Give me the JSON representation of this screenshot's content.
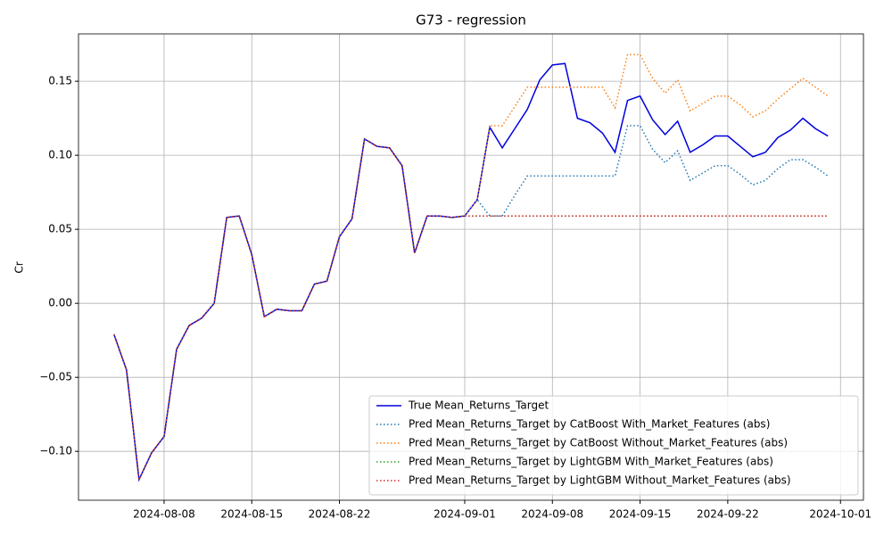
{
  "chart_data": {
    "type": "line",
    "title": "G73 - regression",
    "ylabel": "Cr",
    "x": [
      "2024-08-04",
      "2024-08-05",
      "2024-08-06",
      "2024-08-07",
      "2024-08-08",
      "2024-08-09",
      "2024-08-10",
      "2024-08-11",
      "2024-08-12",
      "2024-08-13",
      "2024-08-14",
      "2024-08-15",
      "2024-08-16",
      "2024-08-17",
      "2024-08-18",
      "2024-08-19",
      "2024-08-20",
      "2024-08-21",
      "2024-08-22",
      "2024-08-23",
      "2024-08-24",
      "2024-08-25",
      "2024-08-26",
      "2024-08-27",
      "2024-08-28",
      "2024-08-29",
      "2024-08-30",
      "2024-08-31",
      "2024-09-01",
      "2024-09-02",
      "2024-09-03",
      "2024-09-04",
      "2024-09-05",
      "2024-09-06",
      "2024-09-07",
      "2024-09-08",
      "2024-09-09",
      "2024-09-10",
      "2024-09-11",
      "2024-09-12",
      "2024-09-13",
      "2024-09-14",
      "2024-09-15",
      "2024-09-16",
      "2024-09-17",
      "2024-09-18",
      "2024-09-19",
      "2024-09-20",
      "2024-09-21",
      "2024-09-22",
      "2024-09-23",
      "2024-09-24",
      "2024-09-25",
      "2024-09-26",
      "2024-09-27",
      "2024-09-28",
      "2024-09-29",
      "2024-09-30"
    ],
    "series": [
      {
        "name": "True Mean_Returns_Target",
        "color": "#0000dd",
        "style": "solid",
        "values": [
          -0.021,
          -0.045,
          -0.119,
          -0.101,
          -0.09,
          -0.031,
          -0.015,
          -0.01,
          0.0,
          0.058,
          0.059,
          0.033,
          -0.009,
          -0.004,
          -0.005,
          -0.005,
          0.013,
          0.015,
          0.045,
          0.057,
          0.111,
          0.106,
          0.105,
          0.093,
          0.034,
          0.059,
          0.059,
          0.058,
          0.059,
          0.07,
          0.119,
          0.105,
          0.118,
          0.131,
          0.151,
          0.161,
          0.162,
          0.125,
          0.122,
          0.115,
          0.102,
          0.137,
          0.14,
          0.124,
          0.114,
          0.123,
          0.102,
          0.107,
          0.113,
          0.113,
          0.106,
          0.099,
          0.102,
          0.112,
          0.117,
          0.125,
          0.118,
          0.113
        ]
      },
      {
        "name": "Pred Mean_Returns_Target by CatBoost With_Market_Features (abs)",
        "color": "#1f77b4",
        "style": "dotted",
        "values": [
          -0.021,
          -0.045,
          -0.119,
          -0.101,
          -0.09,
          -0.031,
          -0.015,
          -0.01,
          0.0,
          0.058,
          0.059,
          0.033,
          -0.009,
          -0.004,
          -0.005,
          -0.005,
          0.013,
          0.015,
          0.045,
          0.057,
          0.111,
          0.106,
          0.105,
          0.093,
          0.034,
          0.059,
          0.059,
          0.058,
          0.059,
          0.07,
          0.059,
          0.059,
          0.073,
          0.086,
          0.086,
          0.086,
          0.086,
          0.086,
          0.086,
          0.086,
          0.086,
          0.12,
          0.12,
          0.104,
          0.095,
          0.103,
          0.083,
          0.088,
          0.093,
          0.093,
          0.087,
          0.08,
          0.083,
          0.091,
          0.097,
          0.097,
          0.092,
          0.086
        ]
      },
      {
        "name": "Pred Mean_Returns_Target by CatBoost Without_Market_Features (abs)",
        "color": "#ff7f0e",
        "style": "dotted",
        "values": [
          -0.021,
          -0.045,
          -0.119,
          -0.101,
          -0.09,
          -0.031,
          -0.015,
          -0.01,
          0.0,
          0.058,
          0.059,
          0.033,
          -0.009,
          -0.004,
          -0.005,
          -0.005,
          0.013,
          0.015,
          0.045,
          0.057,
          0.111,
          0.106,
          0.105,
          0.093,
          0.034,
          0.059,
          0.059,
          0.058,
          0.059,
          0.07,
          0.12,
          0.12,
          0.133,
          0.146,
          0.146,
          0.146,
          0.146,
          0.146,
          0.146,
          0.146,
          0.132,
          0.168,
          0.168,
          0.152,
          0.142,
          0.151,
          0.13,
          0.135,
          0.14,
          0.14,
          0.134,
          0.126,
          0.13,
          0.138,
          0.145,
          0.152,
          0.146,
          0.14
        ]
      },
      {
        "name": "Pred Mean_Returns_Target by LightGBM With_Market_Features (abs)",
        "color": "#2ca02c",
        "style": "dotted",
        "values": [
          -0.021,
          -0.045,
          -0.119,
          -0.101,
          -0.09,
          -0.031,
          -0.015,
          -0.01,
          0.0,
          0.058,
          0.059,
          0.033,
          -0.009,
          -0.004,
          -0.005,
          -0.005,
          0.013,
          0.015,
          0.045,
          0.057,
          0.111,
          0.106,
          0.105,
          0.093,
          0.034,
          0.059,
          0.059,
          0.058,
          0.059,
          0.059,
          0.059,
          0.059,
          0.059,
          0.059,
          0.059,
          0.059,
          0.059,
          0.059,
          0.059,
          0.059,
          0.059,
          0.059,
          0.059,
          0.059,
          0.059,
          0.059,
          0.059,
          0.059,
          0.059,
          0.059,
          0.059,
          0.059,
          0.059,
          0.059,
          0.059,
          0.059,
          0.059,
          0.059
        ]
      },
      {
        "name": "Pred Mean_Returns_Target by LightGBM Without_Market_Features (abs)",
        "color": "#d62728",
        "style": "dotted",
        "values": [
          -0.021,
          -0.045,
          -0.119,
          -0.101,
          -0.09,
          -0.031,
          -0.015,
          -0.01,
          0.0,
          0.058,
          0.059,
          0.033,
          -0.009,
          -0.004,
          -0.005,
          -0.005,
          0.013,
          0.015,
          0.045,
          0.057,
          0.111,
          0.106,
          0.105,
          0.093,
          0.034,
          0.059,
          0.059,
          0.058,
          0.059,
          0.059,
          0.059,
          0.059,
          0.059,
          0.059,
          0.059,
          0.059,
          0.059,
          0.059,
          0.059,
          0.059,
          0.059,
          0.059,
          0.059,
          0.059,
          0.059,
          0.059,
          0.059,
          0.059,
          0.059,
          0.059,
          0.059,
          0.059,
          0.059,
          0.059,
          0.059,
          0.059,
          0.059,
          0.059
        ]
      }
    ],
    "xlim": [
      "2024-08-01T04:00",
      "2024-10-02T20:00"
    ],
    "xticks": [
      "2024-08-08",
      "2024-08-15",
      "2024-08-22",
      "2024-09-01",
      "2024-09-08",
      "2024-09-15",
      "2024-09-22",
      "2024-10-01"
    ],
    "ylim": [
      -0.133,
      0.182
    ],
    "yticks": [
      {
        "value": -0.1,
        "label": "−0.10"
      },
      {
        "value": -0.05,
        "label": "−0.05"
      },
      {
        "value": 0,
        "label": "0.00"
      },
      0.05,
      {
        "value": 0.1,
        "label": "0.10"
      },
      0.15
    ],
    "grid": true,
    "legend": "lower right"
  }
}
